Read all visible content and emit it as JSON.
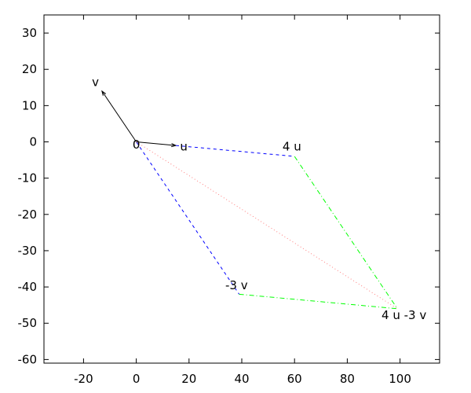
{
  "chart_data": {
    "type": "line",
    "title": "",
    "xlabel": "",
    "ylabel": "",
    "xlim": [
      -35,
      115
    ],
    "ylim": [
      -61,
      35
    ],
    "xticks": [
      -20,
      0,
      20,
      40,
      60,
      80,
      100
    ],
    "yticks": [
      30,
      20,
      10,
      0,
      -10,
      -20,
      -30,
      -40,
      -50,
      -60
    ],
    "grid": false,
    "legend": "none",
    "series": [
      {
        "style": "solid",
        "color": "#000000",
        "arrow": true,
        "points": [
          [
            0,
            0
          ],
          [
            -13,
            14
          ]
        ]
      },
      {
        "style": "solid",
        "color": "#000000",
        "arrow": true,
        "points": [
          [
            0,
            0
          ],
          [
            15,
            -1
          ]
        ]
      },
      {
        "style": "dashed",
        "color": "#0000ff",
        "points": [
          [
            15,
            -1
          ],
          [
            60,
            -4
          ]
        ]
      },
      {
        "style": "dashed",
        "color": "#0000ff",
        "points": [
          [
            0,
            0
          ],
          [
            39,
            -42
          ]
        ]
      },
      {
        "style": "dashdot",
        "color": "#00ff00",
        "points": [
          [
            60,
            -4
          ],
          [
            99,
            -46
          ]
        ]
      },
      {
        "style": "dashdot",
        "color": "#00ff00",
        "points": [
          [
            39,
            -42
          ],
          [
            99,
            -46
          ]
        ]
      },
      {
        "style": "dotted",
        "color": "#ff8080",
        "points": [
          [
            0,
            0
          ],
          [
            99,
            -46
          ]
        ]
      }
    ],
    "annotations": [
      {
        "text": "v",
        "x": -15.5,
        "y": 16.5
      },
      {
        "text": "0",
        "x": 0,
        "y": -0.8
      },
      {
        "text": "u",
        "x": 18,
        "y": -1.3
      },
      {
        "text": "4 u",
        "x": 59,
        "y": -1.3
      },
      {
        "text": "-3 v",
        "x": 38,
        "y": -39.6
      },
      {
        "text": "4 u -3 v",
        "x": 101.5,
        "y": -47.8
      }
    ]
  }
}
